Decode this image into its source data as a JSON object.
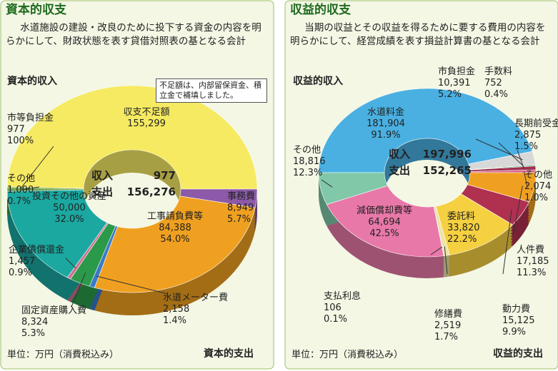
{
  "chart_data": [
    {
      "type": "donut",
      "title": "資本的収支",
      "subtitle": "水道施設の建設・改良のために投下する資金の内容を明らかにして、財政状態を表す貸借対照表の基となる会計",
      "note": "不足額は、内部留保資金、積立金で補填しました。",
      "unit": "単位：万円（消費税込み）",
      "center_labels": [
        "収入",
        "支出"
      ],
      "deficit": {
        "label": "収支不足額",
        "value": 155299,
        "value_label": "155,299",
        "color": "#f6ea62"
      },
      "series": [
        {
          "name": "資本的収入",
          "total": 977,
          "total_label": "977",
          "categories": [
            "市等負担金"
          ],
          "values": [
            977
          ],
          "value_labels": [
            "977"
          ],
          "shares": [
            100
          ],
          "share_labels": [
            "100%"
          ],
          "colors": [
            "#5c9a2c"
          ]
        },
        {
          "name": "資本的支出",
          "total": 156276,
          "total_label": "156,276",
          "categories": [
            "事務費",
            "工事請負費等",
            "水道メーター費",
            "固定資産購入費",
            "企業債償還金",
            "投資その他の資産",
            "その他"
          ],
          "values": [
            8949,
            84388,
            2158,
            8324,
            1457,
            50000,
            1000
          ],
          "value_labels": [
            "8,949",
            "84,388",
            "2,158",
            "8,324",
            "1,457",
            "50,000",
            "1,000"
          ],
          "shares": [
            5.7,
            54.0,
            1.4,
            5.3,
            0.9,
            32.0,
            0.7
          ],
          "share_labels": [
            "5.7%",
            "54.0%",
            "1.4%",
            "5.3%",
            "0.9%",
            "32.0%",
            "0.7%"
          ],
          "colors": [
            "#8c5aa8",
            "#f0a020",
            "#3a7ac8",
            "#2a9a4a",
            "#d07090",
            "#1aa8a0",
            "#4a8a20"
          ]
        }
      ]
    },
    {
      "type": "donut",
      "title": "収益的収支",
      "subtitle": "当期の収益とその収益を得るために要する費用の内容を明らかにして、経営成績を表す損益計算書の基となる会計",
      "unit": "単位：万円（消費税込み）",
      "center_labels": [
        "収入",
        "支出"
      ],
      "series": [
        {
          "name": "収益的収入",
          "total": 197996,
          "total_label": "197,996",
          "categories": [
            "水道料金",
            "市負担金",
            "手数料",
            "長期前受金戻入",
            "その他"
          ],
          "values": [
            181904,
            10391,
            752,
            2875,
            2074
          ],
          "value_labels": [
            "181,904",
            "10,391",
            "752",
            "2,875",
            "2,074"
          ],
          "shares": [
            91.9,
            5.2,
            0.4,
            1.5,
            1.0
          ],
          "share_labels": [
            "91.9%",
            "5.2%",
            "0.4%",
            "1.5%",
            "1.0%"
          ],
          "colors": [
            "#4ab0e2",
            "#d8d8d8",
            "#3a9a4a",
            "#a03050",
            "#d86088"
          ]
        },
        {
          "name": "収益的支出",
          "total": 152265,
          "total_label": "152,265",
          "categories": [
            "人件費",
            "動力費",
            "委託料",
            "修繕費",
            "支払利息",
            "減価償却費等",
            "その他"
          ],
          "values": [
            17185,
            15125,
            33820,
            2519,
            106,
            64694,
            18816
          ],
          "value_labels": [
            "17,185",
            "15,125",
            "33,820",
            "2,519",
            "106",
            "64,694",
            "18,816"
          ],
          "shares": [
            11.3,
            9.9,
            22.2,
            1.7,
            0.1,
            42.5,
            12.3
          ],
          "share_labels": [
            "11.3%",
            "9.9%",
            "22.2%",
            "1.7%",
            "0.1%",
            "42.5%",
            "12.3%"
          ],
          "colors": [
            "#f0a020",
            "#b03050",
            "#f5d040",
            "#ece4a8",
            "#9080c0",
            "#e878a8",
            "#80c8a8"
          ]
        }
      ]
    }
  ]
}
